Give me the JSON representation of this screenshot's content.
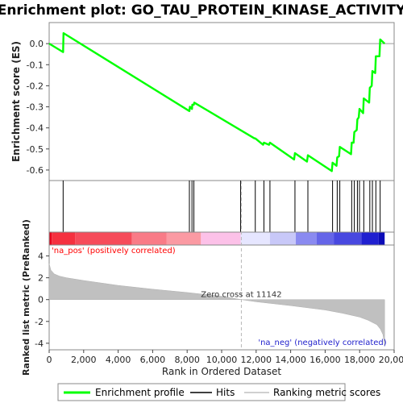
{
  "chart_data": {
    "type": "line",
    "title": "Enrichment plot: GO_TAU_PROTEIN_KINASE_ACTIVITY",
    "ylabel_top": "Enrichment score (ES)",
    "ylabel_bottom": "Ranked list metric (PreRanked)",
    "xlabel": "Rank in Ordered Dataset",
    "xlim": [
      0,
      20000
    ],
    "ylim_es": [
      -0.65,
      0.1
    ],
    "ylim_metric": [
      -4.6,
      5.0
    ],
    "xticks": [
      0,
      2000,
      4000,
      6000,
      8000,
      10000,
      12000,
      14000,
      16000,
      18000,
      20000
    ],
    "xtick_labels": [
      "0",
      "2,000",
      "4,000",
      "6,000",
      "8,000",
      "10,000",
      "12,000",
      "14,000",
      "16,000",
      "18,000",
      "20,000"
    ],
    "yticks_es": [
      0.0,
      -0.1,
      -0.2,
      -0.3,
      -0.4,
      -0.5,
      -0.6
    ],
    "ytick_labels_es": [
      "0.0",
      "-0.1",
      "-0.2",
      "-0.3",
      "-0.4",
      "-0.5",
      "-0.6"
    ],
    "yticks_metric": [
      4,
      2,
      0,
      -2,
      -4
    ],
    "ytick_labels_metric": [
      "4",
      "2",
      "0",
      "-2",
      "-4"
    ],
    "es_profile": {
      "name": "Enrichment profile",
      "color": "#00ff00",
      "x": [
        0,
        810,
        830,
        8130,
        8160,
        8280,
        8300,
        8390,
        8410,
        11900,
        11950,
        12400,
        12450,
        12750,
        12800,
        14200,
        14250,
        14950,
        15000,
        16390,
        16430,
        16660,
        16700,
        16810,
        16850,
        17500,
        17540,
        17650,
        17690,
        17830,
        17870,
        17950,
        17990,
        18200,
        18240,
        18550,
        18590,
        18700,
        18740,
        18900,
        18940,
        19150,
        19190,
        19450
      ],
      "y": [
        0.0,
        -0.04,
        0.05,
        -0.32,
        -0.3,
        -0.31,
        -0.29,
        -0.29,
        -0.28,
        -0.45,
        -0.45,
        -0.48,
        -0.47,
        -0.48,
        -0.47,
        -0.55,
        -0.52,
        -0.56,
        -0.53,
        -0.605,
        -0.565,
        -0.58,
        -0.54,
        -0.535,
        -0.49,
        -0.525,
        -0.47,
        -0.47,
        -0.42,
        -0.41,
        -0.36,
        -0.35,
        -0.31,
        -0.33,
        -0.26,
        -0.28,
        -0.21,
        -0.2,
        -0.13,
        -0.14,
        -0.06,
        -0.06,
        0.02,
        0.0
      ]
    },
    "hits": {
      "name": "Hits",
      "x": [
        810,
        8130,
        8280,
        8390,
        11100,
        11950,
        12450,
        12800,
        14250,
        15000,
        16430,
        16700,
        16850,
        17540,
        17690,
        17870,
        17990,
        18240,
        18590,
        18740,
        18940,
        19190
      ]
    },
    "ranking_metric": {
      "name": "Ranking metric scores",
      "color": "#c0c0c0",
      "x": [
        0,
        100,
        300,
        600,
        1000,
        2000,
        4000,
        6000,
        8000,
        10000,
        11142,
        12000,
        14000,
        16000,
        17000,
        18000,
        18500,
        19000,
        19200,
        19350,
        19420,
        19450
      ],
      "y": [
        3.3,
        2.7,
        2.35,
        2.15,
        2.0,
        1.75,
        1.3,
        0.95,
        0.65,
        0.3,
        0.0,
        -0.2,
        -0.55,
        -0.95,
        -1.25,
        -1.6,
        -1.9,
        -2.3,
        -2.7,
        -3.2,
        -3.9,
        -4.3
      ]
    },
    "zero_cross": 11142,
    "zero_cross_label": "Zero cross at 11142",
    "pos_label": "'na_pos' (positively correlated)",
    "neg_label": "'na_neg' (negatively correlated)",
    "pos_color": "#ff0000",
    "neg_color": "#0000ff",
    "heatbar_segments": [
      {
        "from": 0,
        "to": 150,
        "color": "#e8001c"
      },
      {
        "from": 150,
        "to": 1500,
        "color": "#f5303f"
      },
      {
        "from": 1500,
        "to": 4800,
        "color": "#f64b5a"
      },
      {
        "from": 4800,
        "to": 6800,
        "color": "#f97b87"
      },
      {
        "from": 6800,
        "to": 8800,
        "color": "#fb9aa3"
      },
      {
        "from": 8800,
        "to": 11100,
        "color": "#fcc1e8"
      },
      {
        "from": 11100,
        "to": 12800,
        "color": "#e6e6ff"
      },
      {
        "from": 12800,
        "to": 14300,
        "color": "#c8c8f8"
      },
      {
        "from": 14300,
        "to": 15500,
        "color": "#8a8af0"
      },
      {
        "from": 15500,
        "to": 16500,
        "color": "#6565e8"
      },
      {
        "from": 16500,
        "to": 18100,
        "color": "#4848e0"
      },
      {
        "from": 18100,
        "to": 19100,
        "color": "#2020d0"
      },
      {
        "from": 19100,
        "to": 19450,
        "color": "#0c0cb8"
      }
    ],
    "legend": {
      "placement": "bottom",
      "items": [
        {
          "label": "Enrichment profile",
          "kind": "line",
          "color": "#00ff00"
        },
        {
          "label": "Hits",
          "kind": "line",
          "color": "#000000"
        },
        {
          "label": "Ranking metric scores",
          "kind": "line",
          "color": "#c0c0c0"
        }
      ]
    }
  }
}
